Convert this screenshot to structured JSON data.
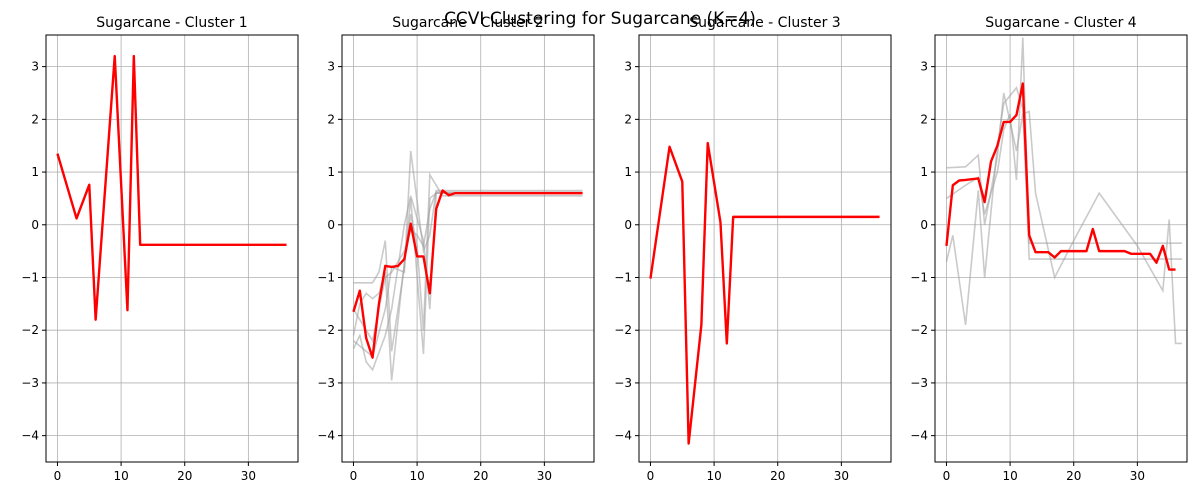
{
  "figure": {
    "suptitle": "CCVI Clustering for Sugarcane (K=4)"
  },
  "chart_data": [
    {
      "type": "line",
      "title": "Sugarcane - Cluster 1",
      "xlim": [
        -1.8,
        37.8
      ],
      "ylim": [
        -4.5,
        3.6
      ],
      "xticks": [
        0,
        10,
        20,
        30
      ],
      "yticks": [
        -4,
        -3,
        -2,
        -1,
        0,
        1,
        2,
        3
      ],
      "grid": true,
      "members": [],
      "centroid": [
        [
          0,
          1.35
        ],
        [
          3,
          0.12
        ],
        [
          5,
          0.76
        ],
        [
          6,
          -1.8
        ],
        [
          9,
          3.2
        ],
        [
          11,
          -1.62
        ],
        [
          12,
          3.2
        ],
        [
          13,
          -0.38
        ],
        [
          36,
          -0.38
        ]
      ],
      "colors": {
        "member": "#9e9e9e",
        "centroid": "#ff0000"
      }
    },
    {
      "type": "line",
      "title": "Sugarcane - Cluster 2",
      "xlim": [
        -1.8,
        37.8
      ],
      "ylim": [
        -4.5,
        3.6
      ],
      "xticks": [
        0,
        10,
        20,
        30
      ],
      "yticks": [
        -4,
        -3,
        -2,
        -1,
        0,
        1,
        2,
        3
      ],
      "grid": true,
      "members": [
        [
          [
            0,
            -2.2
          ],
          [
            1,
            -2.3
          ],
          [
            3,
            -2.5
          ],
          [
            5,
            -1.6
          ],
          [
            6,
            -0.8
          ],
          [
            8,
            -0.9
          ],
          [
            9,
            1.4
          ],
          [
            11,
            -0.5
          ],
          [
            12,
            -0.2
          ],
          [
            13,
            0.65
          ],
          [
            36,
            0.65
          ]
        ],
        [
          [
            0,
            -1.1
          ],
          [
            1,
            -1.1
          ],
          [
            3,
            -1.1
          ],
          [
            4,
            -0.9
          ],
          [
            5,
            -0.3
          ],
          [
            6,
            -2.4
          ],
          [
            8,
            -0.8
          ],
          [
            9,
            0.5
          ],
          [
            11,
            -2.45
          ],
          [
            12,
            0.5
          ],
          [
            13,
            0.6
          ],
          [
            36,
            0.6
          ]
        ],
        [
          [
            0,
            -2.1
          ],
          [
            1,
            -1.5
          ],
          [
            2,
            -1.3
          ],
          [
            3,
            -1.4
          ],
          [
            4,
            -1.3
          ],
          [
            5,
            -0.9
          ],
          [
            6,
            -2.95
          ],
          [
            8,
            -0.7
          ],
          [
            9,
            0.2
          ],
          [
            10,
            -0.4
          ],
          [
            11,
            -2.0
          ],
          [
            12,
            0.95
          ],
          [
            14,
            0.55
          ],
          [
            36,
            0.55
          ]
        ],
        [
          [
            0,
            -2.35
          ],
          [
            1,
            -2.1
          ],
          [
            2,
            -2.6
          ],
          [
            3,
            -2.75
          ],
          [
            5,
            -2.1
          ],
          [
            6,
            -1.6
          ],
          [
            8,
            0.0
          ],
          [
            9,
            0.55
          ],
          [
            11,
            -0.3
          ],
          [
            12,
            -1.6
          ],
          [
            13,
            0.6
          ],
          [
            36,
            0.6
          ]
        ],
        [
          [
            0,
            -1.6
          ],
          [
            1,
            -1.8
          ],
          [
            3,
            -2.2
          ],
          [
            5,
            -1.0
          ],
          [
            6,
            -0.9
          ],
          [
            8,
            -0.5
          ],
          [
            9,
            -0.1
          ],
          [
            10,
            -0.2
          ],
          [
            11,
            -0.4
          ],
          [
            12,
            0.3
          ],
          [
            13,
            0.62
          ],
          [
            36,
            0.62
          ]
        ]
      ],
      "centroid": [
        [
          0,
          -1.65
        ],
        [
          1,
          -1.25
        ],
        [
          2,
          -2.15
        ],
        [
          3,
          -2.52
        ],
        [
          4,
          -1.5
        ],
        [
          5,
          -0.78
        ],
        [
          6,
          -0.8
        ],
        [
          7,
          -0.78
        ],
        [
          8,
          -0.65
        ],
        [
          9,
          0.02
        ],
        [
          10,
          -0.6
        ],
        [
          11,
          -0.6
        ],
        [
          12,
          -1.3
        ],
        [
          13,
          0.3
        ],
        [
          14,
          0.65
        ],
        [
          15,
          0.56
        ],
        [
          16,
          0.6
        ],
        [
          36,
          0.6
        ]
      ],
      "colors": {
        "member": "#9e9e9e",
        "centroid": "#ff0000"
      }
    },
    {
      "type": "line",
      "title": "Sugarcane - Cluster 3",
      "xlim": [
        -1.8,
        37.8
      ],
      "ylim": [
        -4.5,
        3.6
      ],
      "xticks": [
        0,
        10,
        20,
        30
      ],
      "yticks": [
        -4,
        -3,
        -2,
        -1,
        0,
        1,
        2,
        3
      ],
      "grid": true,
      "members": [],
      "centroid": [
        [
          0,
          -1.02
        ],
        [
          3,
          1.48
        ],
        [
          5,
          0.82
        ],
        [
          6,
          -4.15
        ],
        [
          8,
          -1.9
        ],
        [
          9,
          1.55
        ],
        [
          11,
          0.05
        ],
        [
          12,
          -2.25
        ],
        [
          13,
          0.15
        ],
        [
          36,
          0.15
        ]
      ],
      "colors": {
        "member": "#9e9e9e",
        "centroid": "#ff0000"
      }
    },
    {
      "type": "line",
      "title": "Sugarcane - Cluster 4",
      "xlim": [
        -1.8,
        37.8
      ],
      "ylim": [
        -4.5,
        3.6
      ],
      "xticks": [
        0,
        10,
        20,
        30
      ],
      "yticks": [
        -4,
        -3,
        -2,
        -1,
        0,
        1,
        2,
        3
      ],
      "grid": true,
      "members": [
        [
          [
            0,
            1.08
          ],
          [
            3,
            1.1
          ],
          [
            5,
            1.32
          ],
          [
            6,
            0.0
          ],
          [
            8,
            1.3
          ],
          [
            9,
            2.5
          ],
          [
            11,
            1.4
          ],
          [
            12,
            2.1
          ],
          [
            13,
            2.15
          ],
          [
            14,
            0.6
          ],
          [
            17,
            -1.0
          ],
          [
            20,
            -0.3
          ],
          [
            24,
            0.6
          ],
          [
            30,
            -0.4
          ],
          [
            34,
            -1.25
          ],
          [
            35,
            0.1
          ],
          [
            36,
            -2.25
          ],
          [
            37,
            -2.25
          ]
        ],
        [
          [
            0,
            0.5
          ],
          [
            3,
            0.75
          ],
          [
            5,
            0.9
          ],
          [
            6,
            0.2
          ],
          [
            8,
            1.0
          ],
          [
            9,
            1.8
          ],
          [
            10,
            2.1
          ],
          [
            11,
            0.85
          ],
          [
            12,
            3.55
          ],
          [
            13,
            -0.35
          ],
          [
            36,
            -0.35
          ],
          [
            37,
            -0.35
          ]
        ],
        [
          [
            0,
            -0.7
          ],
          [
            1,
            -0.2
          ],
          [
            3,
            -1.9
          ],
          [
            5,
            0.65
          ],
          [
            6,
            -1.0
          ],
          [
            8,
            1.5
          ],
          [
            9,
            2.3
          ],
          [
            11,
            2.6
          ],
          [
            12,
            2.2
          ],
          [
            13,
            -0.65
          ],
          [
            36,
            -0.65
          ],
          [
            37,
            -0.65
          ]
        ]
      ],
      "centroid": [
        [
          0,
          -0.4
        ],
        [
          1,
          0.75
        ],
        [
          2,
          0.84
        ],
        [
          3,
          0.85
        ],
        [
          5,
          0.88
        ],
        [
          6,
          0.43
        ],
        [
          7,
          1.2
        ],
        [
          8,
          1.5
        ],
        [
          9,
          1.95
        ],
        [
          10,
          1.95
        ],
        [
          11,
          2.08
        ],
        [
          12,
          2.68
        ],
        [
          13,
          -0.2
        ],
        [
          14,
          -0.52
        ],
        [
          15,
          -0.52
        ],
        [
          16,
          -0.52
        ],
        [
          17,
          -0.62
        ],
        [
          18,
          -0.5
        ],
        [
          19,
          -0.5
        ],
        [
          20,
          -0.5
        ],
        [
          21,
          -0.5
        ],
        [
          22,
          -0.5
        ],
        [
          23,
          -0.08
        ],
        [
          24,
          -0.5
        ],
        [
          25,
          -0.5
        ],
        [
          26,
          -0.5
        ],
        [
          27,
          -0.5
        ],
        [
          28,
          -0.5
        ],
        [
          29,
          -0.55
        ],
        [
          30,
          -0.55
        ],
        [
          31,
          -0.55
        ],
        [
          32,
          -0.55
        ],
        [
          33,
          -0.72
        ],
        [
          34,
          -0.4
        ],
        [
          35,
          -0.85
        ],
        [
          36,
          -0.85
        ]
      ],
      "colors": {
        "member": "#9e9e9e",
        "centroid": "#ff0000"
      }
    }
  ]
}
